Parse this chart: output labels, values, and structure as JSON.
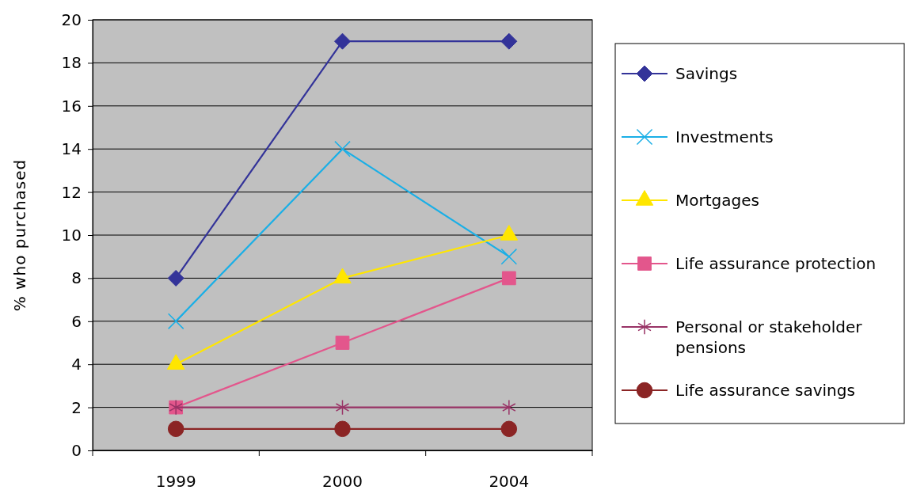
{
  "chart_data": {
    "type": "line",
    "ylabel": "% who purchased",
    "categories": [
      "1999",
      "2000",
      "2004"
    ],
    "ylim": [
      0,
      20
    ],
    "yticks": [
      0,
      2,
      4,
      6,
      8,
      10,
      12,
      14,
      16,
      18,
      20
    ],
    "grid": "y",
    "legend": "right",
    "series": [
      {
        "name": "Savings",
        "color": "#333399",
        "marker": "diamond",
        "values": [
          8,
          19,
          19
        ]
      },
      {
        "name": "Investments",
        "color": "#1aafe6",
        "marker": "cross",
        "values": [
          6,
          14,
          9
        ]
      },
      {
        "name": "Mortgages",
        "color": "#ffe600",
        "marker": "triangle",
        "values": [
          4,
          8,
          10
        ]
      },
      {
        "name": "Life assurance protection",
        "color": "#e3568c",
        "marker": "square",
        "values": [
          2,
          5,
          8
        ]
      },
      {
        "name": "Personal or stakeholder pensions",
        "color": "#993366",
        "marker": "cross",
        "values": [
          2,
          2,
          2
        ]
      },
      {
        "name": "Life assurance savings",
        "color": "#8b2525",
        "marker": "circle",
        "values": [
          1,
          1,
          1
        ]
      }
    ]
  }
}
